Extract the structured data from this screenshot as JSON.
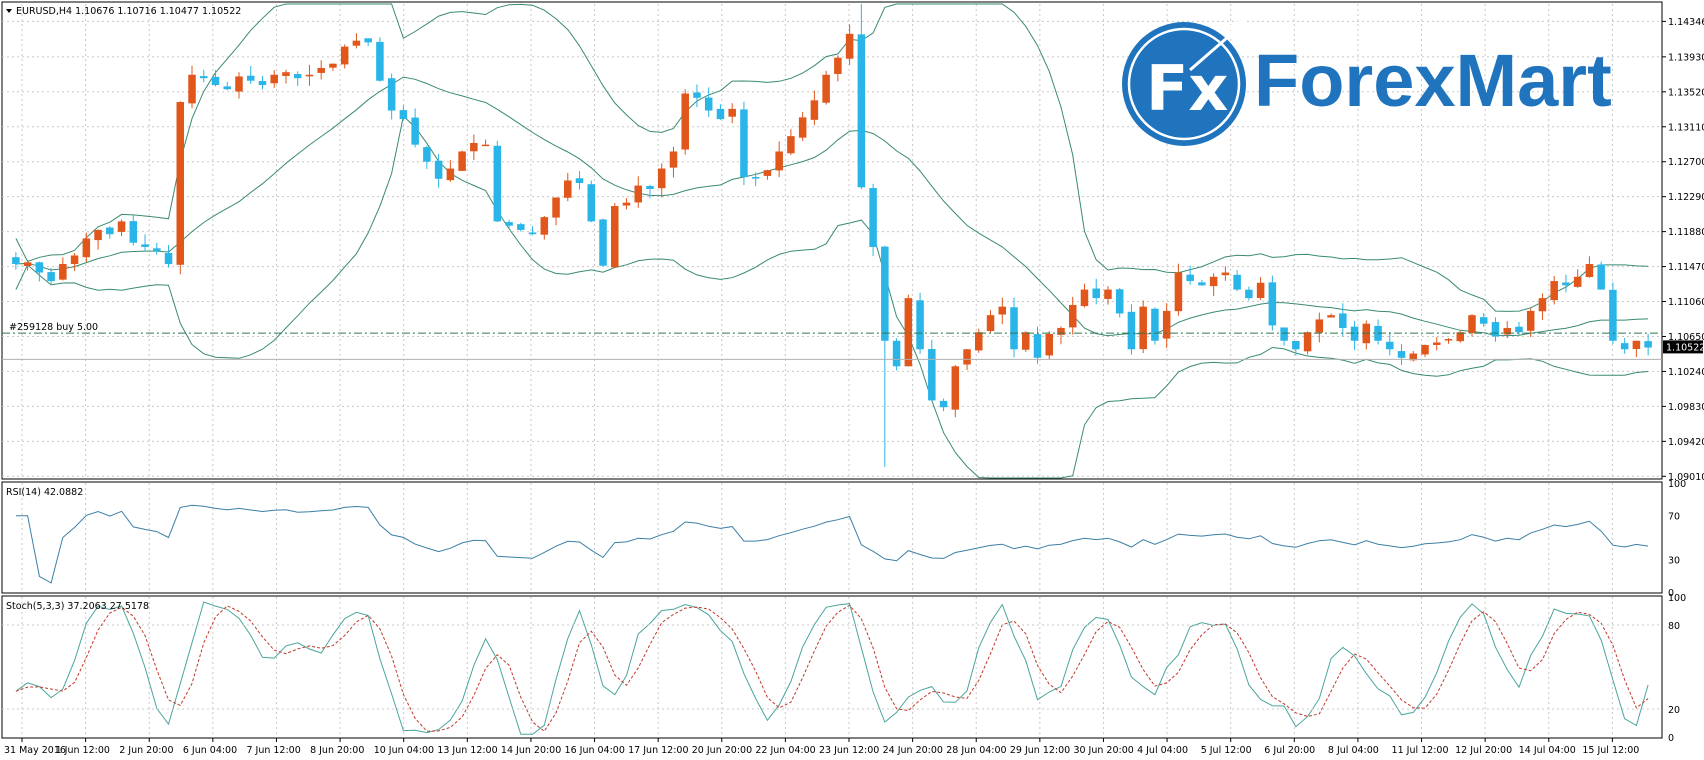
{
  "main": {
    "symbol_header": "EURUSD,H4  1.10676 1.10716 1.10477 1.10522",
    "order_label": "#259128 buy 5.00",
    "current_price": "1.10522",
    "current_price_value": 1.10522,
    "order_price_value": 1.1069,
    "price_axis": [
      "1.14346",
      "1.13930",
      "1.13520",
      "1.13110",
      "1.12700",
      "1.12290",
      "1.11880",
      "1.11470",
      "1.11060",
      "1.10650",
      "1.10240",
      "1.09830",
      "1.09420",
      "1.09010"
    ],
    "price_range": [
      1.0899,
      1.1455
    ]
  },
  "time_axis": [
    "31 May 2016",
    "1 Jun 12:00",
    "2 Jun 20:00",
    "6 Jun 04:00",
    "7 Jun 12:00",
    "8 Jun 20:00",
    "10 Jun 04:00",
    "13 Jun 12:00",
    "14 Jun 20:00",
    "16 Jun 04:00",
    "17 Jun 12:00",
    "20 Jun 20:00",
    "22 Jun 04:00",
    "23 Jun 12:00",
    "24 Jun 20:00",
    "28 Jun 04:00",
    "29 Jun 12:00",
    "30 Jun 20:00",
    "4 Jul 04:00",
    "5 Jul 12:00",
    "6 Jul 20:00",
    "8 Jul 04:00",
    "11 Jul 12:00",
    "12 Jul 20:00",
    "14 Jul 04:00",
    "15 Jul 12:00"
  ],
  "rsi": {
    "header": "RSI(14) 42.0882",
    "axis": [
      "100",
      "70",
      "30",
      "0"
    ]
  },
  "stoch": {
    "header": "Stoch(5,3,3) 37.2063 27.5178",
    "axis": [
      "100",
      "80",
      "20",
      "0"
    ]
  },
  "logo": {
    "text": "ForexMart",
    "monogram": "Fx"
  },
  "colors": {
    "bull": "#e0561b",
    "bear": "#29b5e8",
    "band": "#3a8a72",
    "rsi_line": "#3b7fa6",
    "stoch_main": "#4aa59c",
    "stoch_signal": "#c0392b",
    "logo_blue": "#1f74bd"
  },
  "chart_data": {
    "type": "candlestick",
    "symbol": "EURUSD",
    "timeframe": "H4",
    "close_path": [
      1.115,
      1.1152,
      1.114,
      1.113,
      1.115,
      1.116,
      1.118,
      1.119,
      1.1185,
      1.12,
      1.1175,
      1.117,
      1.1165,
      1.115,
      1.134,
      1.1372,
      1.1368,
      1.136,
      1.1355,
      1.137,
      1.1365,
      1.136,
      1.1372,
      1.1375,
      1.1368,
      1.1372,
      1.138,
      1.1385,
      1.1405,
      1.1412,
      1.141,
      1.1365,
      1.133,
      1.132,
      1.129,
      1.127,
      1.125,
      1.1262,
      1.1282,
      1.1292,
      1.129,
      1.12,
      1.1195,
      1.119,
      1.1185,
      1.1205,
      1.1228,
      1.1248,
      1.1245,
      1.12,
      1.1148,
      1.1218,
      1.1222,
      1.1242,
      1.1238,
      1.1262,
      1.1282,
      1.135,
      1.1345,
      1.133,
      1.132,
      1.1332,
      1.1252,
      1.1252,
      1.126,
      1.1282,
      1.13,
      1.1322,
      1.1342,
      1.1372,
      1.1392,
      1.142,
      1.124,
      1.117,
      1.106,
      1.103,
      1.111,
      1.105,
      1.099,
      1.0982,
      1.103,
      1.105,
      1.107,
      1.109,
      1.11,
      1.105,
      1.107,
      1.104,
      1.1068,
      1.1075,
      1.1102,
      1.112,
      1.111,
      1.112,
      1.1092,
      1.105,
      1.11,
      1.106,
      1.1095,
      1.114,
      1.113,
      1.1125,
      1.1135,
      1.114,
      1.112,
      1.111,
      1.1128,
      1.1078,
      1.106,
      1.105,
      1.107,
      1.1085,
      1.109,
      1.1075,
      1.106,
      1.108,
      1.106,
      1.105,
      1.104,
      1.1045,
      1.1055,
      1.1058,
      1.1062,
      1.107,
      1.109,
      1.108,
      1.1065,
      1.1075,
      1.107,
      1.1095,
      1.111,
      1.113,
      1.1125,
      1.1135,
      1.115,
      1.112,
      1.106,
      1.105,
      1.106,
      1.1052
    ],
    "bollinger": {
      "period": 20
    },
    "rsi_period": 14,
    "rsi_last": 42.0882,
    "stoch_last": [
      37.2063,
      27.5178
    ]
  }
}
